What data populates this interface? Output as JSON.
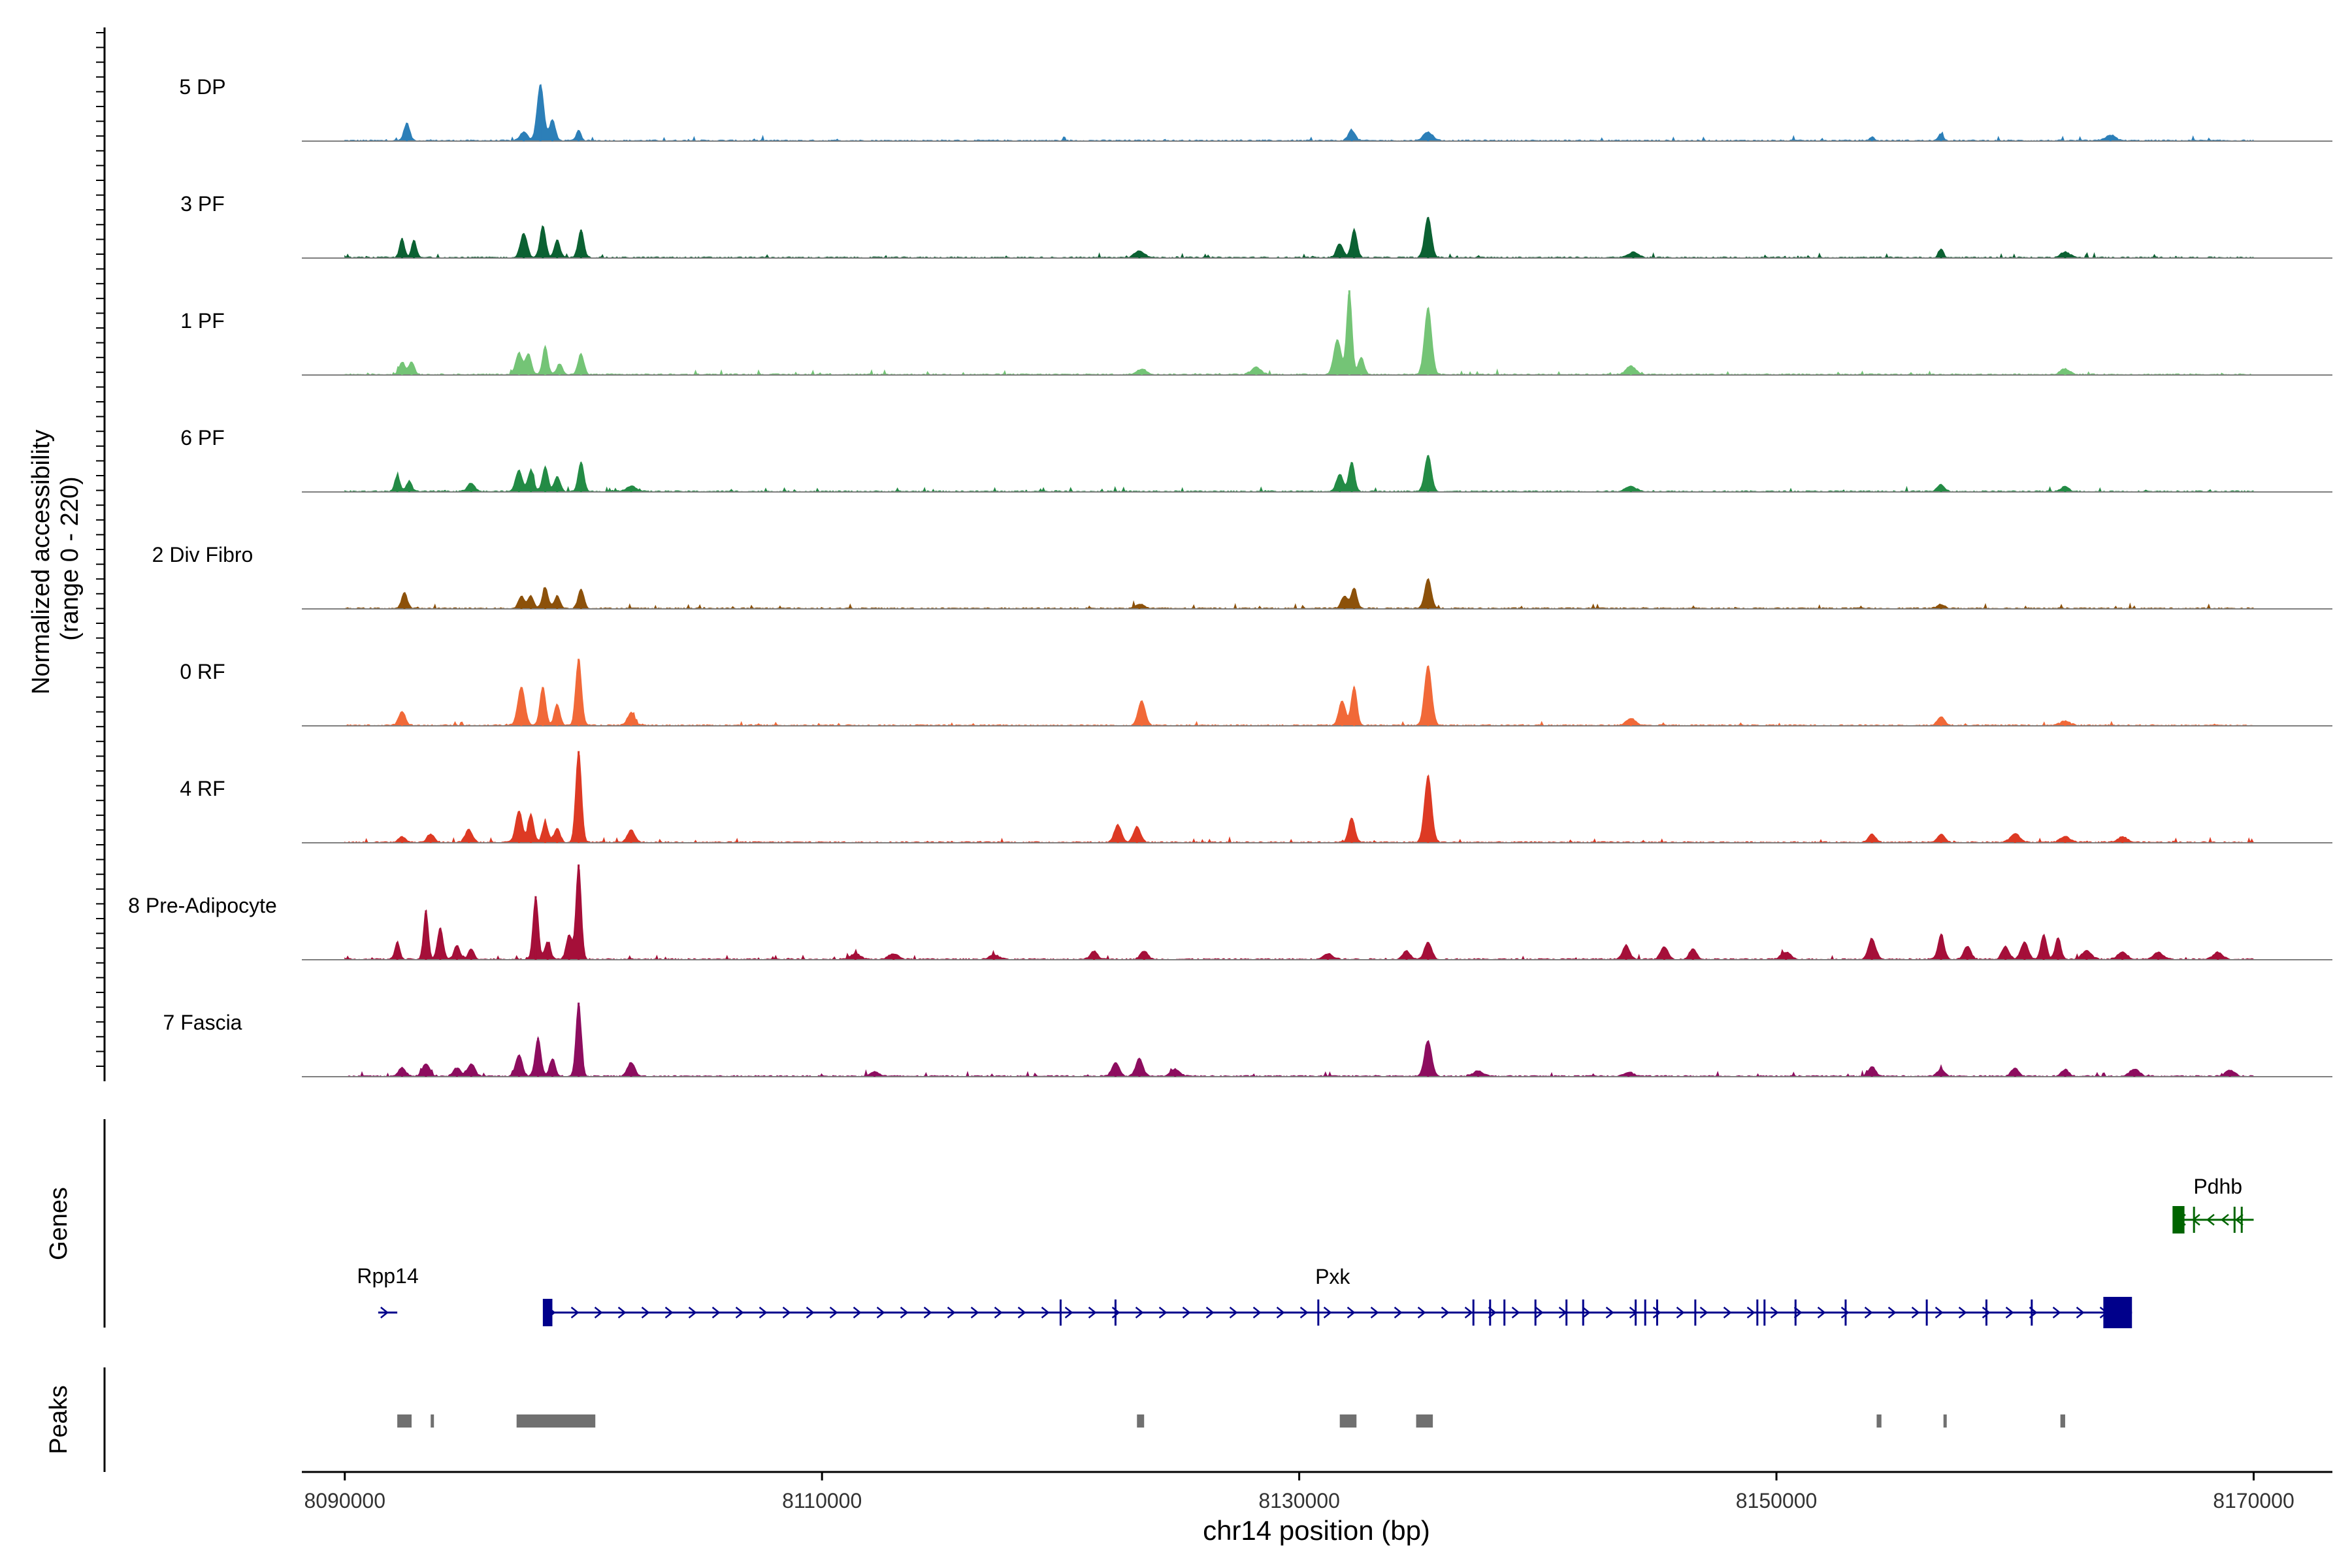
{
  "chart_data": {
    "type": "area",
    "title": "",
    "ylabel_line1": "Normalized accessibility",
    "ylabel_line2": "(range 0 - 220)",
    "yrange": [
      0,
      220
    ],
    "xlabel": "chr14 position (bp)",
    "xlim": [
      8088200,
      8173300
    ],
    "x_ticks": [
      8090000,
      8110000,
      8130000,
      8150000,
      8170000
    ],
    "x_tick_labels": [
      "8090000",
      "8110000",
      "8130000",
      "8150000",
      "8170000"
    ],
    "track_start": 8090000,
    "track_end": 8170000,
    "series": [
      {
        "name": "5 DP",
        "color": "#2c7fb8",
        "peaks": [
          [
            8092600,
            25,
            120
          ],
          [
            8097500,
            12,
            160
          ],
          [
            8098200,
            80,
            140
          ],
          [
            8098700,
            30,
            120
          ],
          [
            8099800,
            15,
            100
          ],
          [
            8132200,
            15,
            140
          ],
          [
            8135400,
            12,
            200
          ],
          [
            8156900,
            10,
            100
          ],
          [
            8164000,
            8,
            200
          ],
          [
            8154000,
            5,
            100
          ]
        ]
      },
      {
        "name": "3 PF",
        "color": "#0b6132",
        "peaks": [
          [
            8092400,
            28,
            100
          ],
          [
            8092900,
            25,
            100
          ],
          [
            8097500,
            35,
            140
          ],
          [
            8098300,
            45,
            120
          ],
          [
            8098900,
            25,
            120
          ],
          [
            8099900,
            40,
            120
          ],
          [
            8123300,
            10,
            200
          ],
          [
            8131700,
            20,
            140
          ],
          [
            8132300,
            40,
            120
          ],
          [
            8135400,
            58,
            140
          ],
          [
            8144000,
            8,
            200
          ],
          [
            8156900,
            12,
            100
          ],
          [
            8162100,
            8,
            200
          ]
        ]
      },
      {
        "name": "1 PF",
        "color": "#74c476",
        "peaks": [
          [
            8092400,
            18,
            120
          ],
          [
            8092800,
            18,
            120
          ],
          [
            8097300,
            30,
            140
          ],
          [
            8097700,
            30,
            120
          ],
          [
            8098400,
            40,
            110
          ],
          [
            8099000,
            15,
            120
          ],
          [
            8099900,
            30,
            120
          ],
          [
            8123400,
            8,
            200
          ],
          [
            8128200,
            10,
            200
          ],
          [
            8131600,
            50,
            150
          ],
          [
            8132100,
            120,
            110
          ],
          [
            8132600,
            25,
            120
          ],
          [
            8135400,
            95,
            150
          ],
          [
            8143900,
            12,
            200
          ],
          [
            8162100,
            8,
            200
          ]
        ]
      },
      {
        "name": "6 PF",
        "color": "#238b45",
        "peaks": [
          [
            8092200,
            22,
            110
          ],
          [
            8092700,
            15,
            110
          ],
          [
            8095300,
            12,
            150
          ],
          [
            8097300,
            30,
            140
          ],
          [
            8097800,
            30,
            120
          ],
          [
            8098400,
            35,
            120
          ],
          [
            8098900,
            22,
            120
          ],
          [
            8099900,
            42,
            120
          ],
          [
            8102000,
            8,
            200
          ],
          [
            8131700,
            25,
            140
          ],
          [
            8132200,
            42,
            120
          ],
          [
            8135400,
            52,
            140
          ],
          [
            8143900,
            8,
            200
          ],
          [
            8156900,
            10,
            150
          ],
          [
            8162100,
            8,
            150
          ]
        ]
      },
      {
        "name": "2 Div Fibro",
        "color": "#8c510a",
        "peaks": [
          [
            8092500,
            22,
            120
          ],
          [
            8097400,
            18,
            120
          ],
          [
            8097800,
            18,
            120
          ],
          [
            8098400,
            30,
            120
          ],
          [
            8098900,
            18,
            120
          ],
          [
            8099900,
            28,
            120
          ],
          [
            8131900,
            18,
            140
          ],
          [
            8132300,
            28,
            120
          ],
          [
            8135400,
            42,
            140
          ],
          [
            8123300,
            6,
            200
          ],
          [
            8156900,
            6,
            150
          ]
        ]
      },
      {
        "name": "0 RF",
        "color": "#f16938",
        "peaks": [
          [
            8092400,
            20,
            140
          ],
          [
            8097400,
            55,
            150
          ],
          [
            8098300,
            55,
            120
          ],
          [
            8098900,
            30,
            120
          ],
          [
            8099800,
            95,
            120
          ],
          [
            8102000,
            18,
            150
          ],
          [
            8123400,
            35,
            150
          ],
          [
            8131800,
            35,
            140
          ],
          [
            8132300,
            55,
            120
          ],
          [
            8135400,
            85,
            150
          ],
          [
            8143900,
            10,
            200
          ],
          [
            8156900,
            12,
            150
          ],
          [
            8162100,
            6,
            200
          ]
        ]
      },
      {
        "name": "4 RF",
        "color": "#dd3a24",
        "peaks": [
          [
            8092400,
            8,
            150
          ],
          [
            8093600,
            12,
            150
          ],
          [
            8095200,
            18,
            150
          ],
          [
            8097300,
            45,
            140
          ],
          [
            8097800,
            40,
            120
          ],
          [
            8098400,
            28,
            120
          ],
          [
            8098900,
            20,
            120
          ],
          [
            8099800,
            130,
            120
          ],
          [
            8102000,
            18,
            150
          ],
          [
            8122400,
            25,
            150
          ],
          [
            8123200,
            22,
            150
          ],
          [
            8132200,
            35,
            130
          ],
          [
            8135400,
            95,
            150
          ],
          [
            8154000,
            12,
            150
          ],
          [
            8156900,
            12,
            150
          ],
          [
            8160000,
            12,
            200
          ],
          [
            8162100,
            8,
            200
          ],
          [
            8164500,
            8,
            200
          ]
        ]
      },
      {
        "name": "8 Pre-Adipocyte",
        "color": "#a50f39",
        "peaks": [
          [
            8092200,
            25,
            100
          ],
          [
            8093400,
            70,
            100
          ],
          [
            8094000,
            45,
            120
          ],
          [
            8094700,
            20,
            120
          ],
          [
            8095300,
            15,
            120
          ],
          [
            8098000,
            90,
            110
          ],
          [
            8098500,
            25,
            120
          ],
          [
            8099800,
            135,
            110
          ],
          [
            8099400,
            35,
            120
          ],
          [
            8111400,
            8,
            200
          ],
          [
            8113000,
            8,
            200
          ],
          [
            8117200,
            6,
            200
          ],
          [
            8121400,
            12,
            150
          ],
          [
            8123500,
            12,
            150
          ],
          [
            8131200,
            8,
            200
          ],
          [
            8134500,
            12,
            150
          ],
          [
            8135400,
            25,
            150
          ],
          [
            8143700,
            20,
            150
          ],
          [
            8145300,
            18,
            150
          ],
          [
            8146500,
            15,
            150
          ],
          [
            8150400,
            10,
            200
          ],
          [
            8154000,
            30,
            150
          ],
          [
            8156900,
            35,
            130
          ],
          [
            8158000,
            18,
            150
          ],
          [
            8159600,
            18,
            150
          ],
          [
            8160400,
            25,
            150
          ],
          [
            8161200,
            35,
            120
          ],
          [
            8161800,
            30,
            120
          ],
          [
            8163000,
            12,
            200
          ],
          [
            8164500,
            10,
            200
          ],
          [
            8166000,
            10,
            200
          ],
          [
            8168500,
            10,
            200
          ]
        ]
      },
      {
        "name": "7 Fascia",
        "color": "#8d0d5f",
        "peaks": [
          [
            8092400,
            12,
            150
          ],
          [
            8093400,
            18,
            150
          ],
          [
            8094700,
            12,
            150
          ],
          [
            8095300,
            18,
            150
          ],
          [
            8097300,
            30,
            140
          ],
          [
            8098100,
            55,
            120
          ],
          [
            8098700,
            25,
            120
          ],
          [
            8099800,
            105,
            110
          ],
          [
            8102000,
            20,
            150
          ],
          [
            8112200,
            6,
            200
          ],
          [
            8122300,
            20,
            150
          ],
          [
            8123300,
            25,
            150
          ],
          [
            8124800,
            10,
            200
          ],
          [
            8135400,
            50,
            150
          ],
          [
            8137500,
            8,
            200
          ],
          [
            8143800,
            6,
            200
          ],
          [
            8154000,
            14,
            150
          ],
          [
            8156900,
            10,
            150
          ],
          [
            8160000,
            12,
            150
          ],
          [
            8162100,
            10,
            150
          ],
          [
            8165000,
            10,
            200
          ],
          [
            8169000,
            8,
            200
          ]
        ]
      }
    ],
    "genes_label": "Genes",
    "genes": [
      {
        "name": "Rpp14",
        "strand": "+",
        "color": "#00008b",
        "start": 8091400,
        "end": 8092200,
        "label_pos": 8091800,
        "exons": [],
        "introns": []
      },
      {
        "name": "Pxk",
        "strand": "+",
        "color": "#00008b",
        "start": 8098400,
        "end": 8164900,
        "label_pos": 8131400,
        "exons": [
          [
            8098300,
            8098700
          ],
          [
            8163700,
            8164900
          ]
        ],
        "introns": [
          8120000,
          8122300,
          8130800,
          8137300,
          8138000,
          8138600,
          8139900,
          8141200,
          8141900,
          8144100,
          8144500,
          8145000,
          8146600,
          8149200,
          8149500,
          8150800,
          8152900,
          8156300,
          8158800,
          8160700
        ]
      },
      {
        "name": "Pdhb",
        "strand": "-",
        "color": "#006400",
        "start": 8166700,
        "end": 8170000,
        "label_pos": 8168500,
        "exons": [
          [
            8166600,
            8167100
          ]
        ],
        "introns": [
          8167500,
          8169200,
          8169500
        ]
      }
    ],
    "peaks_label": "Peaks",
    "peak_regions": [
      [
        8092200,
        8092800
      ],
      [
        8093600,
        8093700
      ],
      [
        8097200,
        8100500
      ],
      [
        8123200,
        8123500
      ],
      [
        8131700,
        8132400
      ],
      [
        8134900,
        8135600
      ],
      [
        8154200,
        8154400
      ],
      [
        8157000,
        8157100
      ],
      [
        8161900,
        8162100
      ]
    ]
  }
}
